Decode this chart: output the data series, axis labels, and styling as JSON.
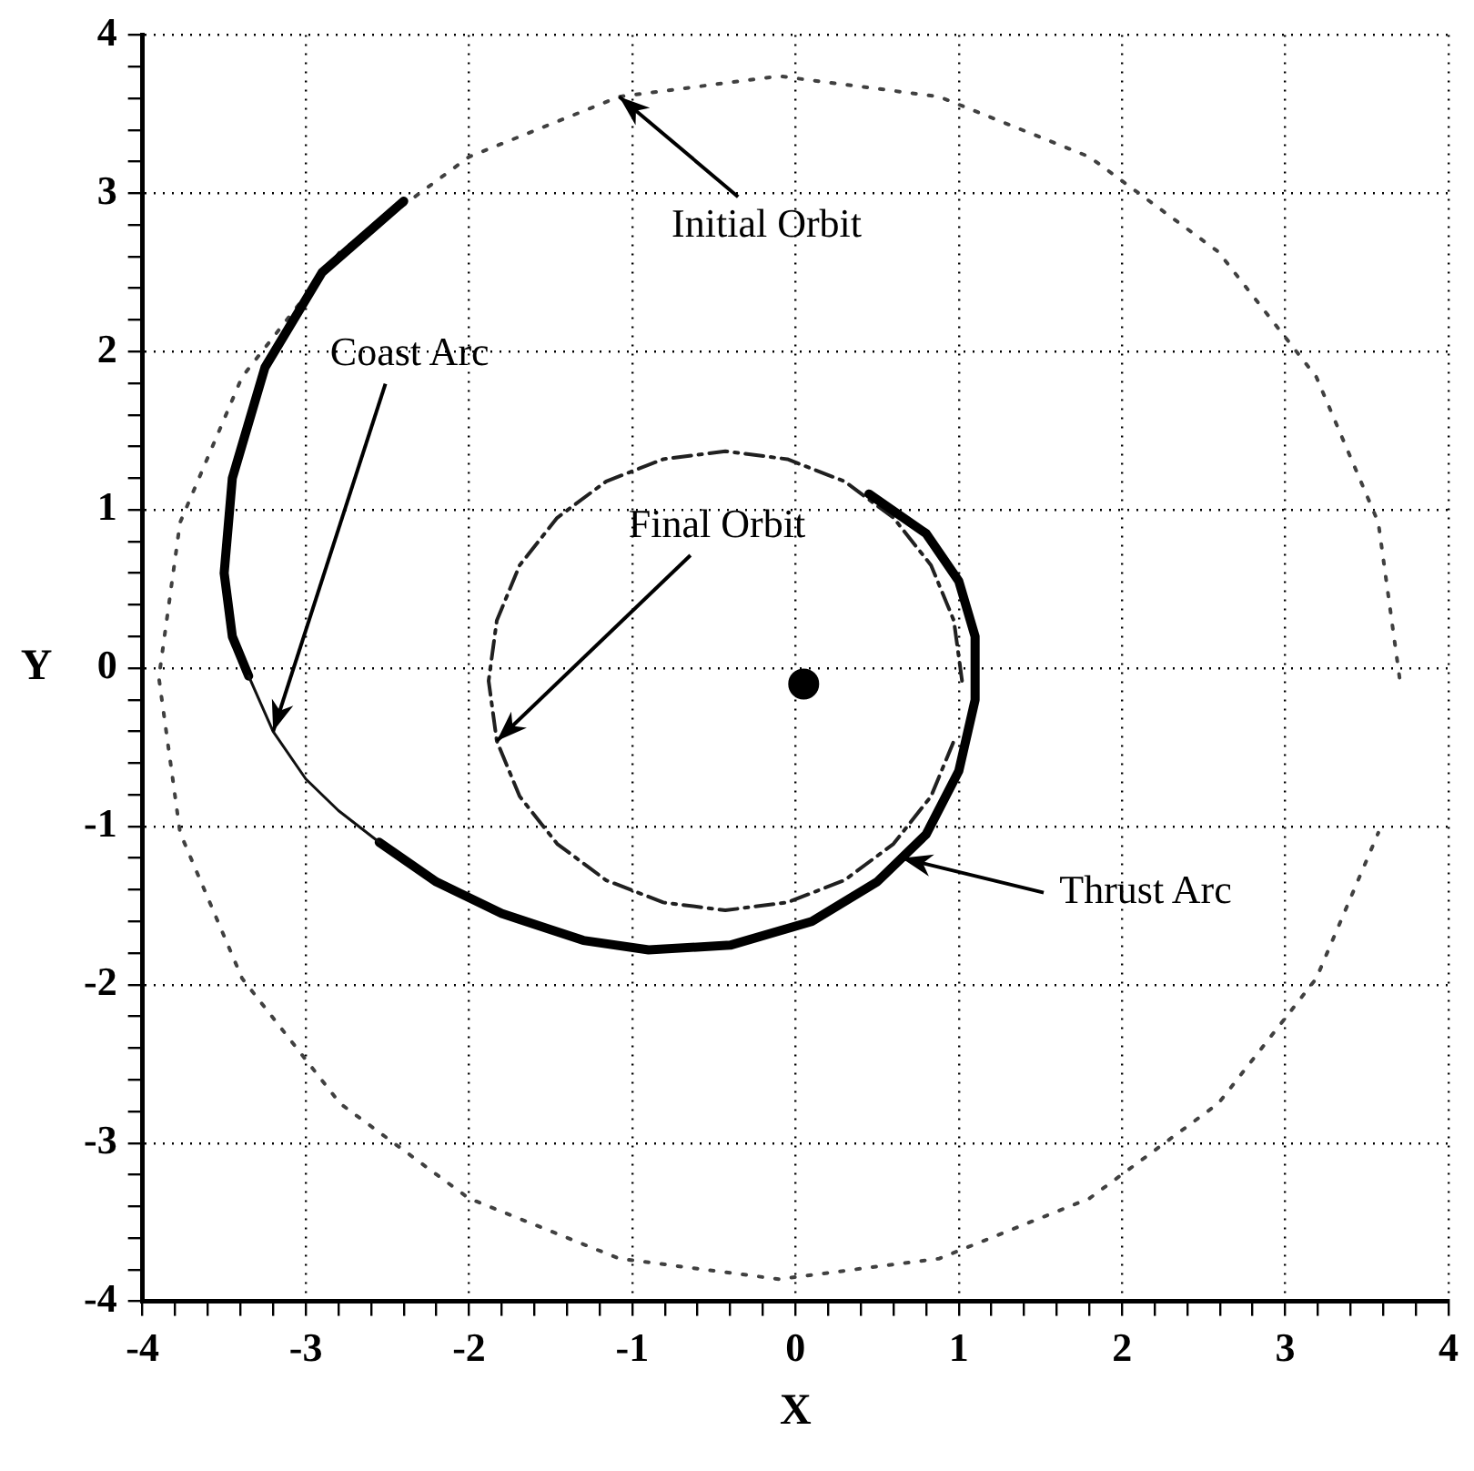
{
  "chart_data": {
    "type": "line",
    "xlabel": "X",
    "ylabel": "Y",
    "xlim": [
      -4,
      4
    ],
    "ylim": [
      -4,
      4
    ],
    "xticks": [
      -4,
      {
        "value": -3.8,
        "label": null
      },
      {
        "value": -3.6,
        "label": null
      },
      {
        "value": -3.4,
        "label": null
      },
      {
        "value": -3.2,
        "label": null
      },
      -3,
      {
        "value": -2.8,
        "label": null
      },
      {
        "value": -2.6,
        "label": null
      },
      {
        "value": -2.4,
        "label": null
      },
      {
        "value": -2.2,
        "label": null
      },
      -2,
      {
        "value": -1.8,
        "label": null
      },
      {
        "value": -1.6,
        "label": null
      },
      {
        "value": -1.4,
        "label": null
      },
      {
        "value": -1.2,
        "label": null
      },
      -1,
      {
        "value": -0.8,
        "label": null
      },
      {
        "value": -0.6,
        "label": null
      },
      {
        "value": -0.4,
        "label": null
      },
      {
        "value": -0.2,
        "label": null
      },
      0,
      {
        "value": 0.2,
        "label": null
      },
      {
        "value": 0.4,
        "label": null
      },
      {
        "value": 0.6,
        "label": null
      },
      {
        "value": 0.8,
        "label": null
      },
      1,
      {
        "value": 1.2,
        "label": null
      },
      {
        "value": 1.4,
        "label": null
      },
      {
        "value": 1.6,
        "label": null
      },
      {
        "value": 1.8,
        "label": null
      },
      2,
      {
        "value": 2.2,
        "label": null
      },
      {
        "value": 2.4,
        "label": null
      },
      {
        "value": 2.6,
        "label": null
      },
      {
        "value": 2.8,
        "label": null
      },
      3,
      {
        "value": 3.2,
        "label": null
      },
      {
        "value": 3.4,
        "label": null
      },
      {
        "value": 3.6,
        "label": null
      },
      {
        "value": 3.8,
        "label": null
      },
      4
    ],
    "yticks": [
      -4,
      {
        "value": -3.8,
        "label": null
      },
      {
        "value": -3.6,
        "label": null
      },
      {
        "value": -3.4,
        "label": null
      },
      {
        "value": -3.2,
        "label": null
      },
      -3,
      {
        "value": -2.8,
        "label": null
      },
      {
        "value": -2.6,
        "label": null
      },
      {
        "value": -2.4,
        "label": null
      },
      {
        "value": -2.2,
        "label": null
      },
      -2,
      {
        "value": -1.8,
        "label": null
      },
      {
        "value": -1.6,
        "label": null
      },
      {
        "value": -1.4,
        "label": null
      },
      {
        "value": -1.2,
        "label": null
      },
      -1,
      {
        "value": -0.8,
        "label": null
      },
      {
        "value": -0.6,
        "label": null
      },
      {
        "value": -0.4,
        "label": null
      },
      {
        "value": -0.2,
        "label": null
      },
      0,
      {
        "value": 0.2,
        "label": null
      },
      {
        "value": 0.4,
        "label": null
      },
      {
        "value": 0.6,
        "label": null
      },
      {
        "value": 0.8,
        "label": null
      },
      1,
      {
        "value": 1.2,
        "label": null
      },
      {
        "value": 1.4,
        "label": null
      },
      {
        "value": 1.6,
        "label": null
      },
      {
        "value": 1.8,
        "label": null
      },
      2,
      {
        "value": 2.2,
        "label": null
      },
      {
        "value": 2.4,
        "label": null
      },
      {
        "value": 2.6,
        "label": null
      },
      {
        "value": 2.8,
        "label": null
      },
      3,
      {
        "value": 3.2,
        "label": null
      },
      {
        "value": 3.4,
        "label": null
      },
      {
        "value": 3.6,
        "label": null
      },
      {
        "value": 3.8,
        "label": null
      },
      4
    ],
    "grid": true,
    "legend": false,
    "marker": "none",
    "series": [
      {
        "color": "#404040",
        "line_style": "dotted",
        "x": [
          3.7,
          3.57,
          3.19,
          2.59,
          1.8,
          0.88,
          -0.1,
          -1.08,
          -2.0,
          -2.79,
          -3.39,
          -3.77,
          -3.9,
          -3.77,
          -3.39,
          -2.79,
          -2.0,
          -1.08,
          -0.1,
          0.88,
          1.8,
          2.59,
          3.19,
          3.57
        ],
        "values": [
          -0.06,
          0.92,
          1.84,
          2.63,
          3.23,
          3.61,
          3.74,
          3.61,
          3.23,
          2.63,
          1.84,
          0.92,
          -0.06,
          -1.04,
          -1.96,
          -2.75,
          -3.35,
          -3.73,
          -3.86,
          -3.73,
          -3.35,
          -2.75,
          -1.96,
          -1.04
        ]
      },
      {
        "color": "#202020",
        "line_style": "dashed",
        "x": [
          1.02,
          0.97,
          0.83,
          0.6,
          0.3,
          -0.05,
          -0.43,
          -0.81,
          -1.16,
          -1.46,
          -1.69,
          -1.83,
          -1.88,
          -1.83,
          -1.69,
          -1.46,
          -1.16,
          -0.81,
          -0.43,
          -0.05,
          0.3,
          0.6,
          0.83,
          0.97
        ],
        "values": [
          -0.08,
          0.3,
          0.65,
          0.95,
          1.18,
          1.32,
          1.37,
          1.32,
          1.18,
          0.95,
          0.65,
          0.3,
          -0.08,
          -0.46,
          -0.81,
          -1.11,
          -1.34,
          -1.48,
          -1.53,
          -1.48,
          -1.34,
          -1.11,
          -0.81,
          -0.46
        ]
      },
      {
        "color": "#000000",
        "line_style": "solid",
        "x": [
          -2.4,
          -2.9,
          -3.25,
          -3.45,
          -3.5,
          -3.45,
          -3.35,
          null,
          -2.55,
          -2.2,
          -1.8,
          -1.3,
          -0.9,
          -0.4,
          0.1,
          0.5,
          0.8,
          1.0,
          1.1,
          1.1,
          1.0,
          0.8,
          0.45
        ],
        "values": [
          2.95,
          2.5,
          1.9,
          1.2,
          0.6,
          0.2,
          -0.05,
          null,
          -1.1,
          -1.35,
          -1.55,
          -1.72,
          -1.78,
          -1.75,
          -1.6,
          -1.35,
          -1.05,
          -0.65,
          -0.2,
          0.2,
          0.55,
          0.85,
          1.1
        ]
      },
      {
        "color": "#101010",
        "line_style": "solid",
        "x": [
          -3.35,
          -3.2,
          -3.0,
          -2.8,
          -2.55
        ],
        "values": [
          -0.05,
          -0.4,
          -0.7,
          -0.9,
          -1.1
        ]
      },
      {
        "type": "scatter",
        "color": "#000000",
        "marker": "circle",
        "x": [
          0.05
        ],
        "values": [
          -0.1
        ]
      }
    ],
    "annotations": [
      {
        "text": "Initial Orbit",
        "x": -1.08,
        "y": 3.61
      },
      {
        "text": "Coast Arc",
        "x": -3.2,
        "y": -0.4
      },
      {
        "text": "Final Orbit",
        "x": -1.83,
        "y": -0.46
      },
      {
        "text": "Thrust Arc",
        "x": 0.65,
        "y": -1.2
      }
    ]
  }
}
